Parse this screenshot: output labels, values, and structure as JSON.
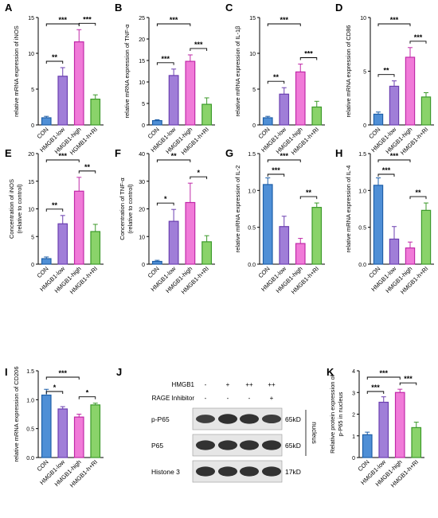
{
  "panel_letters": [
    "A",
    "B",
    "C",
    "D",
    "E",
    "F",
    "G",
    "H",
    "I",
    "J",
    "K"
  ],
  "categories": [
    "CON",
    "HMGB1-low",
    "HMGB1-high",
    "HMGB1-h+RI"
  ],
  "colors": {
    "bar_fill": [
      "#4f8fd6",
      "#a07ed8",
      "#f07ad8",
      "#8ad36a"
    ],
    "error": [
      "#1e5fa8",
      "#6b3fb0",
      "#c02aa8",
      "#3c9a2a"
    ]
  },
  "chart_data": [
    {
      "type": "bar",
      "label": "A",
      "ylabel": "relative mRNA expression of iNOS",
      "ylim": [
        0,
        15
      ],
      "yticks": [
        0,
        5,
        10,
        15
      ],
      "categories": [
        "CON",
        "HMGB1-low",
        "HMGB1-high",
        "HGMB1-h+RI"
      ],
      "values": [
        1,
        6.8,
        11.6,
        3.6
      ],
      "errors": [
        0.2,
        1.2,
        1.7,
        0.6
      ],
      "sig": [
        {
          "from": 0,
          "to": 1,
          "label": "**",
          "level": 0
        },
        {
          "from": 2,
          "to": 3,
          "label": "***",
          "level": 0
        },
        {
          "from": 0,
          "to": 2,
          "label": "***",
          "level": 1
        }
      ]
    },
    {
      "type": "bar",
      "label": "B",
      "ylabel": "relative mRNA expression of TNF-α",
      "ylim": [
        0,
        25
      ],
      "yticks": [
        0,
        5,
        10,
        15,
        20,
        25
      ],
      "categories": [
        "CON",
        "HMGB1-low",
        "HMGB1-high",
        "HMGB1-h+RI"
      ],
      "values": [
        1,
        11.5,
        14.8,
        4.8
      ],
      "errors": [
        0.2,
        1.5,
        1.5,
        1.5
      ],
      "sig": [
        {
          "from": 0,
          "to": 1,
          "label": "***",
          "level": 0
        },
        {
          "from": 2,
          "to": 3,
          "label": "***",
          "level": 0
        },
        {
          "from": 0,
          "to": 2,
          "label": "***",
          "level": 1
        }
      ]
    },
    {
      "type": "bar",
      "label": "C",
      "ylabel": "relative mRNA expression of IL-1β",
      "ylim": [
        0,
        15
      ],
      "yticks": [
        0,
        5,
        10,
        15
      ],
      "categories": [
        "CON",
        "HMGB1-low",
        "HMGB1-high",
        "HMGB1-h+RI"
      ],
      "values": [
        1,
        4.3,
        7.4,
        2.5
      ],
      "errors": [
        0.2,
        0.9,
        1.1,
        0.8
      ],
      "sig": [
        {
          "from": 0,
          "to": 1,
          "label": "**",
          "level": 0
        },
        {
          "from": 2,
          "to": 3,
          "label": "***",
          "level": 0
        },
        {
          "from": 0,
          "to": 2,
          "label": "***",
          "level": 1
        }
      ]
    },
    {
      "type": "bar",
      "label": "D",
      "ylabel": "relative mRNA expression of CD86",
      "ylim": [
        0,
        10
      ],
      "yticks": [
        0,
        5,
        10
      ],
      "categories": [
        "CON",
        "HMGB1-low",
        "HMGB1-high",
        "HMGB1-h+RI"
      ],
      "values": [
        1,
        3.6,
        6.3,
        2.6
      ],
      "errors": [
        0.2,
        0.5,
        0.9,
        0.4
      ],
      "sig": [
        {
          "from": 0,
          "to": 1,
          "label": "**",
          "level": 0
        },
        {
          "from": 2,
          "to": 3,
          "label": "***",
          "level": 0
        },
        {
          "from": 0,
          "to": 2,
          "label": "***",
          "level": 1
        }
      ]
    },
    {
      "type": "bar",
      "label": "E",
      "ylabel": "Concentration of iNOS",
      "ylabel2": "(relative to control)",
      "ylim": [
        0,
        20
      ],
      "yticks": [
        0,
        5,
        10,
        15,
        20
      ],
      "categories": [
        "CON",
        "HMGB1-low",
        "HMGB1-high",
        "HMGB1-h+RI"
      ],
      "values": [
        1,
        7.3,
        13.2,
        5.9
      ],
      "errors": [
        0.3,
        1.5,
        2.5,
        1.3
      ],
      "sig": [
        {
          "from": 0,
          "to": 1,
          "label": "**",
          "level": 0
        },
        {
          "from": 2,
          "to": 3,
          "label": "**",
          "level": 0
        },
        {
          "from": 0,
          "to": 2,
          "label": "***",
          "level": 1
        }
      ]
    },
    {
      "type": "bar",
      "label": "F",
      "ylabel": "Concentration of TNF-α",
      "ylabel2": "(relative to control)",
      "ylim": [
        0,
        40
      ],
      "yticks": [
        0,
        10,
        20,
        30,
        40
      ],
      "categories": [
        "CON",
        "HMGB1-low",
        "HMGB1-high",
        "HMGB1-h+RI"
      ],
      "values": [
        1,
        15.5,
        22.3,
        8.1
      ],
      "errors": [
        0.4,
        4.3,
        7,
        2.2
      ],
      "sig": [
        {
          "from": 0,
          "to": 1,
          "label": "*",
          "level": 0
        },
        {
          "from": 2,
          "to": 3,
          "label": "*",
          "level": 0
        },
        {
          "from": 0,
          "to": 2,
          "label": "**",
          "level": 1
        }
      ]
    },
    {
      "type": "bar",
      "label": "G",
      "ylabel": "relative mRNA expression of IL-2",
      "ylim": [
        0,
        1.5
      ],
      "yticks": [
        0.0,
        0.5,
        1.0,
        1.5
      ],
      "categories": [
        "CON",
        "HMGB1-low",
        "HMGB1-high",
        "HMGB1-h+RI"
      ],
      "values": [
        1.08,
        0.51,
        0.28,
        0.77
      ],
      "errors": [
        0.09,
        0.14,
        0.07,
        0.06
      ],
      "sig": [
        {
          "from": 0,
          "to": 1,
          "label": "***",
          "level": 0
        },
        {
          "from": 2,
          "to": 3,
          "label": "**",
          "level": 0
        },
        {
          "from": 0,
          "to": 2,
          "label": "***",
          "level": 1
        }
      ]
    },
    {
      "type": "bar",
      "label": "H",
      "ylabel": "relative mRNA expression of IL-4",
      "ylim": [
        0,
        1.5
      ],
      "yticks": [
        0.0,
        0.5,
        1.0,
        1.5
      ],
      "categories": [
        "CON",
        "HMGB1-low",
        "HMGB1-high",
        "HMGB1-h+RI"
      ],
      "values": [
        1.07,
        0.34,
        0.22,
        0.73
      ],
      "errors": [
        0.1,
        0.17,
        0.08,
        0.1
      ],
      "sig": [
        {
          "from": 0,
          "to": 1,
          "label": "***",
          "level": 0
        },
        {
          "from": 2,
          "to": 3,
          "label": "**",
          "level": 0
        },
        {
          "from": 0,
          "to": 2,
          "label": "***",
          "level": 1
        }
      ]
    },
    {
      "type": "bar",
      "label": "I",
      "ylabel": "relative mRNA expression of CD206",
      "ylim": [
        0,
        1.5
      ],
      "yticks": [
        0.0,
        0.5,
        1.0,
        1.5
      ],
      "categories": [
        "CON",
        "HMGB1-low",
        "HMGB1-high",
        "HMGB1-h+RI"
      ],
      "values": [
        1.08,
        0.84,
        0.7,
        0.91
      ],
      "errors": [
        0.1,
        0.04,
        0.05,
        0.03
      ],
      "sig": [
        {
          "from": 0,
          "to": 1,
          "label": "*",
          "level": 0
        },
        {
          "from": 2,
          "to": 3,
          "label": "*",
          "level": 0
        },
        {
          "from": 0,
          "to": 2,
          "label": "***",
          "level": 1
        }
      ]
    },
    {
      "type": "bar",
      "label": "K",
      "ylabel": "Relative protein expression of",
      "ylabel2": "p-P65 in nucleus",
      "ylim": [
        0,
        4
      ],
      "yticks": [
        0,
        1,
        2,
        3,
        4
      ],
      "categories": [
        "CON",
        "HMGB1-low",
        "HMGB1-high",
        "HMGB1-h+RI"
      ],
      "values": [
        1.05,
        2.55,
        3.0,
        1.38
      ],
      "errors": [
        0.12,
        0.25,
        0.15,
        0.25
      ],
      "sig": [
        {
          "from": 0,
          "to": 1,
          "label": "***",
          "level": 0
        },
        {
          "from": 2,
          "to": 3,
          "label": "***",
          "level": 0
        },
        {
          "from": 0,
          "to": 2,
          "label": "***",
          "level": 1
        }
      ]
    }
  ],
  "western": {
    "label": "J",
    "header_rows": [
      {
        "name": "HMGB1",
        "marks": [
          "-",
          "+",
          "++",
          "++"
        ]
      },
      {
        "name": "RAGE Inhibitor",
        "marks": [
          "-",
          "-",
          "-",
          "+"
        ]
      }
    ],
    "blots": [
      {
        "name": "p-P65",
        "kd": "65kD",
        "intensity": [
          0.55,
          0.9,
          0.85,
          0.6
        ]
      },
      {
        "name": "P65",
        "kd": "65kD",
        "intensity": [
          0.85,
          0.85,
          0.85,
          0.85
        ]
      },
      {
        "name": "Histone 3",
        "kd": "17kD",
        "intensity": [
          0.85,
          0.85,
          0.85,
          0.85
        ]
      }
    ],
    "side_label": "nucleus"
  }
}
